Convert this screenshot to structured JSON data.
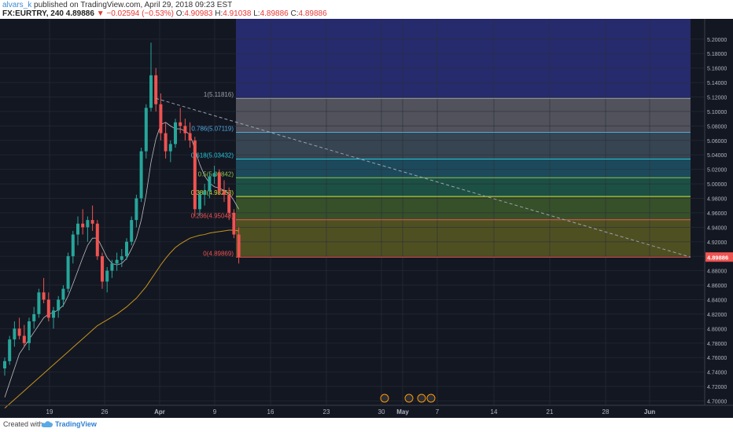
{
  "header": {
    "author": "alvars_k",
    "published": "published on TradingView.com, April 29, 2018 09:23 EST",
    "symbol": "FX:EURTRY, 240",
    "last": "4.89886",
    "change": "▼ −0.02594 (−0.53%)",
    "open_label": "O:",
    "open": "4.90983",
    "high_label": "H:",
    "high": "4.91038",
    "low_label": "L:",
    "low": "4.89886",
    "close_label": "C:",
    "close": "4.89886"
  },
  "footer": {
    "created_with": "Created with",
    "brand": "TradingView"
  },
  "colors": {
    "background": "#131722",
    "grid": "#2a2e39",
    "bull": "#26a69a",
    "bear": "#ef5350",
    "ma_fast": "#d9d9d9",
    "ma_slow": "#e5a91c",
    "trendline": "#9aa3b0",
    "price_badge": "#ef5350"
  },
  "chart_data": {
    "type": "candlestick",
    "x_axis_labels": [
      "19",
      "26",
      "Apr",
      "9",
      "16",
      "23",
      "30",
      "May",
      "7",
      "14",
      "21",
      "28",
      "Jun"
    ],
    "y_tick_labels": [
      "5.20000",
      "5.18000",
      "5.16000",
      "5.14000",
      "5.12000",
      "5.10000",
      "5.08000",
      "5.06000",
      "5.04000",
      "5.02000",
      "5.00000",
      "4.98000",
      "4.96000",
      "4.94000",
      "4.92000",
      "4.90000",
      "4.88000",
      "4.86000",
      "4.84000",
      "4.82000",
      "4.80000",
      "4.78000",
      "4.76000",
      "4.74000",
      "4.72000",
      "4.70000"
    ],
    "ylim": [
      4.694,
      5.228
    ],
    "grid": true,
    "current_price": "4.89886",
    "fibonacci_levels": [
      {
        "ratio": "1",
        "label": "1(5.11816)",
        "price": 5.11816,
        "fill": "#5d5d66"
      },
      {
        "ratio": "0.786",
        "label": "0.786(5.07119)",
        "price": 5.07119,
        "fill": "#3d4d59"
      },
      {
        "ratio": "0.618",
        "label": "0.618(5.03432)",
        "price": 5.03432,
        "fill": "#1f5366"
      },
      {
        "ratio": "0.5",
        "label": "0.5(5.00842)",
        "price": 5.00842,
        "fill": "#1f5a4a"
      },
      {
        "ratio": "0.382",
        "label": "0.382(4.98253)",
        "price": 4.98253,
        "fill": "#3d5a2a"
      },
      {
        "ratio": "0.236",
        "label": "0.236(4.95048)",
        "price": 4.95048,
        "fill": "#5a5a22"
      },
      {
        "ratio": "0",
        "label": "0(4.89869)",
        "price": 4.89869,
        "fill": "#5a2226"
      }
    ],
    "fib_top_fill": "#2a2f7a",
    "fib_colors": [
      "#9aa0a6",
      "#4fa8e0",
      "#26c6da",
      "#8bc34a",
      "#cddc39",
      "#ef5350",
      "#ef5350"
    ],
    "series": [
      {
        "name": "EURTRY",
        "candles": [
          [
            4.745,
            4.76,
            4.735,
            4.755
          ],
          [
            4.755,
            4.79,
            4.75,
            4.785
          ],
          [
            4.785,
            4.81,
            4.775,
            4.8
          ],
          [
            4.8,
            4.815,
            4.785,
            4.79
          ],
          [
            4.79,
            4.805,
            4.775,
            4.78
          ],
          [
            4.78,
            4.815,
            4.77,
            4.81
          ],
          [
            4.81,
            4.83,
            4.8,
            4.82
          ],
          [
            4.82,
            4.855,
            4.815,
            4.85
          ],
          [
            4.85,
            4.87,
            4.835,
            4.84
          ],
          [
            4.84,
            4.85,
            4.81,
            4.815
          ],
          [
            4.815,
            4.83,
            4.8,
            4.825
          ],
          [
            4.825,
            4.845,
            4.815,
            4.84
          ],
          [
            4.84,
            4.86,
            4.83,
            4.855
          ],
          [
            4.855,
            4.905,
            4.85,
            4.9
          ],
          [
            4.9,
            4.935,
            4.89,
            4.93
          ],
          [
            4.93,
            4.955,
            4.915,
            4.945
          ],
          [
            4.945,
            4.965,
            4.93,
            4.94
          ],
          [
            4.94,
            4.955,
            4.92,
            4.95
          ],
          [
            4.95,
            4.97,
            4.935,
            4.945
          ],
          [
            4.945,
            4.95,
            4.895,
            4.9
          ],
          [
            4.9,
            4.905,
            4.855,
            4.865
          ],
          [
            4.865,
            4.885,
            4.85,
            4.88
          ],
          [
            4.88,
            4.895,
            4.87,
            4.89
          ],
          [
            4.89,
            4.905,
            4.88,
            4.895
          ],
          [
            4.895,
            4.91,
            4.885,
            4.9
          ],
          [
            4.9,
            4.925,
            4.895,
            4.92
          ],
          [
            4.92,
            4.955,
            4.915,
            4.95
          ],
          [
            4.95,
            4.985,
            4.94,
            4.98
          ],
          [
            4.98,
            5.05,
            4.975,
            5.045
          ],
          [
            5.045,
            5.11,
            5.035,
            5.105
          ],
          [
            5.105,
            5.195,
            5.1,
            5.15
          ],
          [
            5.15,
            5.16,
            5.1,
            5.11
          ],
          [
            5.11,
            5.125,
            5.06,
            5.07
          ],
          [
            5.07,
            5.085,
            5.035,
            5.045
          ],
          [
            5.045,
            5.06,
            5.03,
            5.055
          ],
          [
            5.055,
            5.09,
            5.05,
            5.085
          ],
          [
            5.085,
            5.105,
            5.07,
            5.08
          ],
          [
            5.08,
            5.09,
            5.06,
            5.07
          ],
          [
            5.07,
            5.085,
            5.05,
            5.06
          ],
          [
            5.06,
            5.065,
            4.955,
            4.965
          ],
          [
            4.965,
            4.99,
            4.955,
            4.985
          ],
          [
            4.985,
            5.0,
            4.97,
            4.99
          ],
          [
            4.99,
            5.015,
            4.98,
            5.01
          ],
          [
            5.01,
            5.025,
            5.0,
            5.015
          ],
          [
            5.015,
            5.02,
            4.985,
            4.99
          ],
          [
            4.99,
            5.005,
            4.975,
            4.985
          ],
          [
            4.985,
            4.995,
            4.95,
            4.96
          ],
          [
            4.96,
            4.965,
            4.925,
            4.93
          ],
          [
            4.93,
            4.94,
            4.89,
            4.899
          ]
        ]
      },
      {
        "name": "MA fast",
        "values": [
          4.705,
          4.725,
          4.745,
          4.765,
          4.775,
          4.785,
          4.795,
          4.805,
          4.815,
          4.82,
          4.822,
          4.826,
          4.832,
          4.845,
          4.862,
          4.88,
          4.898,
          4.915,
          4.925,
          4.925,
          4.912,
          4.898,
          4.89,
          4.888,
          4.89,
          4.897,
          4.91,
          4.925,
          4.95,
          4.985,
          5.03,
          5.062,
          5.082,
          5.085,
          5.08,
          5.076,
          5.076,
          5.073,
          5.068,
          5.048,
          5.027,
          5.011,
          5.001,
          4.996,
          4.994,
          4.991,
          4.987,
          4.977,
          4.965
        ]
      },
      {
        "name": "MA slow",
        "values": [
          4.69,
          4.696,
          4.702,
          4.708,
          4.714,
          4.72,
          4.726,
          4.732,
          4.738,
          4.744,
          4.75,
          4.756,
          4.762,
          4.768,
          4.774,
          4.78,
          4.786,
          4.792,
          4.798,
          4.804,
          4.808,
          4.812,
          4.816,
          4.82,
          4.825,
          4.83,
          4.836,
          4.842,
          4.85,
          4.858,
          4.868,
          4.878,
          4.888,
          4.897,
          4.905,
          4.912,
          4.917,
          4.921,
          4.925,
          4.927,
          4.929,
          4.93,
          4.932,
          4.933,
          4.934,
          4.935,
          4.936,
          4.936,
          4.935
        ]
      }
    ],
    "trendline": {
      "from_price": 5.11816,
      "to_price": 4.89869
    }
  }
}
